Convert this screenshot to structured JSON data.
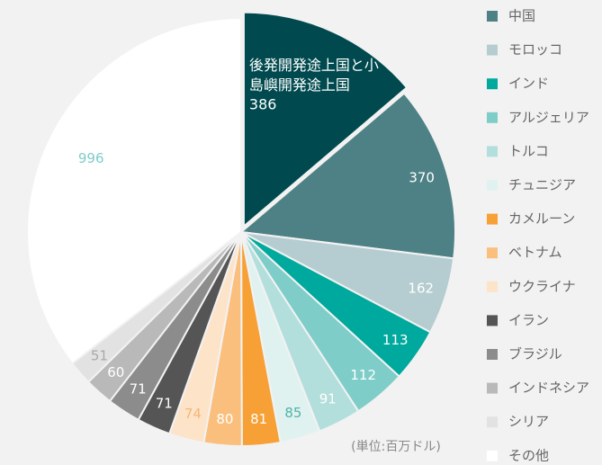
{
  "chart_data": {
    "type": "pie",
    "categories": [
      "後発開発途上国と小島嶼開発途上国",
      "中国",
      "モロッコ",
      "インド",
      "アルジェリア",
      "トルコ",
      "チュニジア",
      "カメルーン",
      "ベトナム",
      "ウクライナ",
      "イラン",
      "ブラジル",
      "インドネシア",
      "シリア",
      "その他"
    ],
    "values": [
      386,
      370,
      162,
      113,
      112,
      91,
      85,
      81,
      80,
      74,
      71,
      71,
      60,
      51,
      996
    ],
    "colors": [
      "#004a4f",
      "#4e8185",
      "#b5cdd0",
      "#00a99d",
      "#7ecdc8",
      "#b2dfdc",
      "#e0f2f0",
      "#f7a035",
      "#fbbf7d",
      "#fde3c8",
      "#555555",
      "#8c8c8c",
      "#b9b9b9",
      "#e2e2e2",
      "#ffffff"
    ],
    "label_colors": [
      "#ffffff",
      "#ffffff",
      "#ffffff",
      "#ffffff",
      "#ffffff",
      "#ffffff",
      "#4fb3aa",
      "#ffffff",
      "#ffffff",
      "#f5b878",
      "#ffffff",
      "#ffffff",
      "#ffffff",
      "#a9a9a9",
      "#7ecdc8"
    ],
    "exploded": [
      0
    ],
    "legend": "right",
    "note": "(単位:百万ドル)"
  }
}
